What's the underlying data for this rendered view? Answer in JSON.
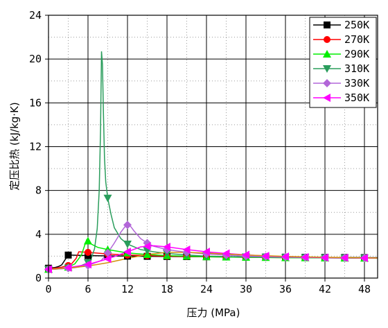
{
  "chart_data": {
    "type": "line",
    "xlabel": "压力 (MPa)",
    "ylabel": "定压比热 (kJ/kg·K)",
    "xlim": [
      0,
      50
    ],
    "ylim": [
      0,
      24
    ],
    "xticks": [
      0,
      6,
      12,
      18,
      24,
      30,
      36,
      42,
      48
    ],
    "yticks": [
      0,
      4,
      8,
      12,
      16,
      20,
      24
    ],
    "grid": {
      "major": "solid",
      "minor": "dotted",
      "minor_x_step": 3,
      "minor_y_step": 2
    },
    "legend_position": "top-right",
    "series": [
      {
        "name": "250K",
        "color": "#000000",
        "marker": "square",
        "x": [
          0.1,
          0.5,
          1.0,
          1.5,
          2.0,
          2.7,
          3.0,
          6,
          12,
          18,
          24,
          30,
          36,
          42,
          48,
          50
        ],
        "y": [
          0.9,
          0.93,
          0.97,
          1.05,
          1.2,
          1.85,
          2.1,
          2.05,
          2.0,
          1.97,
          1.95,
          1.93,
          1.91,
          1.89,
          1.87,
          1.86
        ],
        "markers_x": [
          0,
          3,
          6,
          9,
          12,
          15,
          18,
          21,
          24,
          27,
          30,
          33,
          36,
          39,
          42,
          45,
          48
        ]
      },
      {
        "name": "270K",
        "color": "#ff0000",
        "marker": "circle",
        "x": [
          0.1,
          1,
          2,
          3,
          3.5,
          4.2,
          4.6,
          6,
          9,
          12,
          18,
          24,
          30,
          36,
          42,
          48,
          50
        ],
        "y": [
          0.85,
          0.9,
          1.0,
          1.15,
          1.3,
          1.8,
          2.4,
          2.35,
          2.2,
          2.1,
          2.0,
          1.95,
          1.9,
          1.87,
          1.85,
          1.83,
          1.82
        ],
        "markers_x": [
          0,
          3,
          6,
          9,
          12,
          15,
          18,
          21,
          24,
          27,
          30,
          33,
          36,
          39,
          42,
          45,
          48
        ]
      },
      {
        "name": "290K",
        "color": "#00ee00",
        "marker": "triangle-up",
        "x": [
          0.1,
          1,
          2,
          3,
          4,
          5,
          5.5,
          5.8,
          6.5,
          7.5,
          9,
          12,
          15,
          18,
          24,
          30,
          36,
          42,
          48,
          50
        ],
        "y": [
          0.8,
          0.85,
          0.9,
          1.0,
          1.3,
          2.1,
          3.0,
          3.5,
          3.1,
          2.8,
          2.6,
          2.3,
          2.15,
          2.05,
          1.95,
          1.9,
          1.86,
          1.84,
          1.82,
          1.81
        ],
        "markers_x": [
          0,
          3,
          6,
          9,
          12,
          15,
          18,
          21,
          24,
          27,
          30,
          33,
          36,
          39,
          42,
          45,
          48
        ]
      },
      {
        "name": "310K",
        "color": "#2a9d5c",
        "marker": "triangle-down",
        "x": [
          0.1,
          1,
          2,
          3,
          4,
          5,
          6,
          6.5,
          7.0,
          7.4,
          7.7,
          7.9,
          8.05,
          8.2,
          8.35,
          8.5,
          8.7,
          9.0,
          9.5,
          10,
          11,
          12,
          14,
          16,
          18,
          21,
          24,
          30,
          36,
          42,
          48,
          50
        ],
        "y": [
          0.8,
          0.82,
          0.86,
          0.92,
          1.0,
          1.15,
          1.4,
          1.8,
          2.7,
          4.5,
          8.0,
          13.5,
          20.7,
          19.5,
          15.0,
          11.0,
          8.8,
          7.3,
          5.8,
          4.6,
          3.6,
          3.1,
          2.6,
          2.4,
          2.25,
          2.1,
          2.0,
          1.93,
          1.88,
          1.85,
          1.83,
          1.82
        ],
        "markers_x": [
          0,
          3,
          6,
          9,
          12,
          15,
          18,
          21,
          24,
          27,
          30,
          33,
          36,
          39,
          42,
          45,
          48
        ]
      },
      {
        "name": "330K",
        "color": "#b266d8",
        "marker": "diamond",
        "x": [
          0.1,
          2,
          4,
          6,
          8,
          9,
          10,
          11,
          11.7,
          12,
          12.5,
          13,
          14,
          15,
          16,
          18,
          21,
          24,
          30,
          36,
          42,
          48,
          50
        ],
        "y": [
          0.8,
          0.85,
          0.95,
          1.15,
          1.6,
          2.3,
          3.2,
          4.2,
          4.75,
          4.85,
          4.7,
          4.3,
          3.6,
          3.2,
          2.9,
          2.6,
          2.35,
          2.2,
          2.0,
          1.92,
          1.87,
          1.84,
          1.83
        ],
        "markers_x": [
          0,
          3,
          6,
          9,
          12,
          15,
          18,
          21,
          24,
          27,
          30,
          33,
          36,
          39,
          42,
          45,
          48
        ]
      },
      {
        "name": "350K",
        "color": "#ff00ff",
        "marker": "triangle-left",
        "x": [
          0.1,
          3,
          6,
          9,
          12,
          14,
          16,
          18,
          21,
          24,
          27,
          30,
          33,
          36,
          39,
          42,
          45,
          48,
          50
        ],
        "y": [
          0.8,
          0.95,
          1.25,
          1.75,
          2.4,
          2.85,
          2.95,
          2.85,
          2.6,
          2.4,
          2.25,
          2.12,
          2.02,
          1.96,
          1.91,
          1.87,
          1.85,
          1.83,
          1.82
        ],
        "markers_x": [
          0,
          3,
          6,
          9,
          12,
          15,
          18,
          21,
          24,
          27,
          30,
          33,
          36,
          39,
          42,
          45,
          48
        ]
      },
      {
        "name": "",
        "color": "#d4900c",
        "marker": "none",
        "x": [
          0.1,
          3,
          6,
          9,
          12,
          15,
          18,
          21,
          24,
          30,
          36,
          42,
          48,
          50
        ],
        "y": [
          0.8,
          0.92,
          1.1,
          1.4,
          1.8,
          2.15,
          2.35,
          2.35,
          2.28,
          2.1,
          1.98,
          1.9,
          1.85,
          1.83
        ],
        "markers_x": []
      }
    ]
  }
}
